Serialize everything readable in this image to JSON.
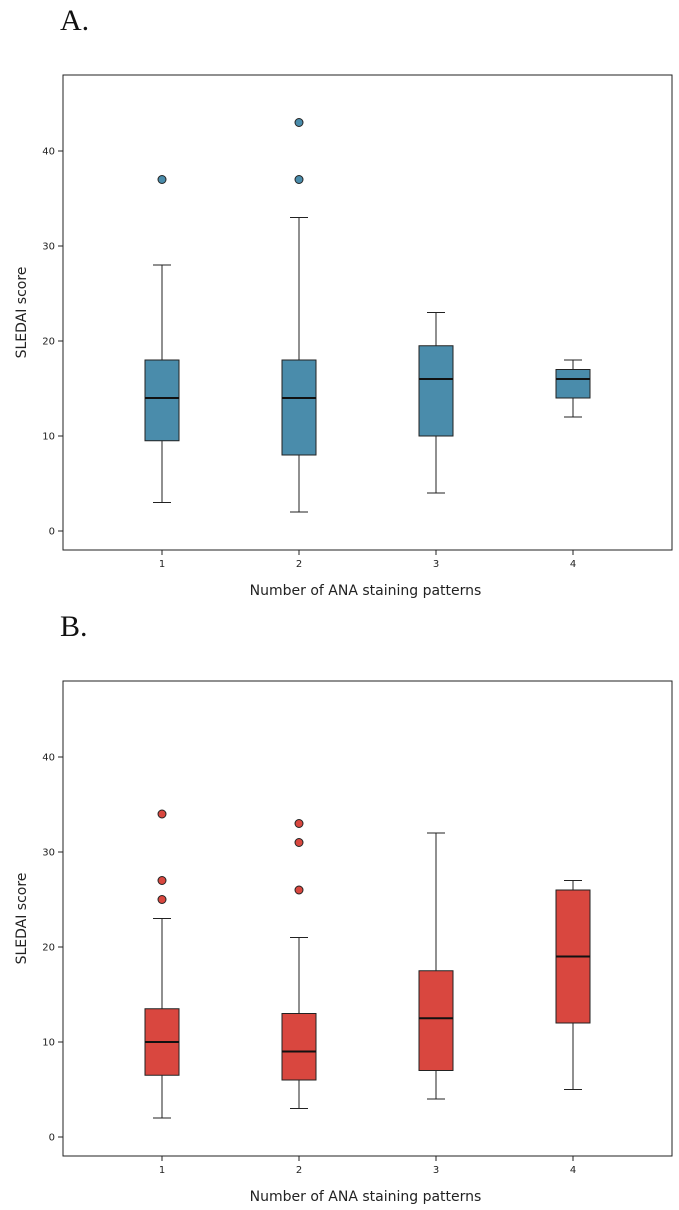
{
  "chart_data": [
    {
      "panel_label": "A.",
      "type": "box",
      "xlabel": "Number of ANA staining patterns",
      "ylabel": "SLEDAI score",
      "ylim": [
        -2,
        48
      ],
      "yticks": [
        0,
        10,
        20,
        30,
        40
      ],
      "fill_color": "#4a8cab",
      "grid": false,
      "categories": [
        "1",
        "2",
        "3",
        "4"
      ],
      "boxes": [
        {
          "category": "1",
          "whisker_low": 3,
          "q1": 9.5,
          "median": 14,
          "q3": 18,
          "whisker_high": 28,
          "outliers": [
            37
          ]
        },
        {
          "category": "2",
          "whisker_low": 2,
          "q1": 8,
          "median": 14,
          "q3": 18,
          "whisker_high": 33,
          "outliers": [
            37,
            43
          ]
        },
        {
          "category": "3",
          "whisker_low": 4,
          "q1": 10,
          "median": 16,
          "q3": 19.5,
          "whisker_high": 23,
          "outliers": []
        },
        {
          "category": "4",
          "whisker_low": 12,
          "q1": 14,
          "median": 16,
          "q3": 17,
          "whisker_high": 18,
          "outliers": []
        }
      ]
    },
    {
      "panel_label": "B.",
      "type": "box",
      "xlabel": "Number of ANA staining patterns",
      "ylabel": "SLEDAI score",
      "ylim": [
        -2,
        48
      ],
      "yticks": [
        0,
        10,
        20,
        30,
        40
      ],
      "fill_color": "#d9473f",
      "grid": false,
      "categories": [
        "1",
        "2",
        "3",
        "4"
      ],
      "boxes": [
        {
          "category": "1",
          "whisker_low": 2,
          "q1": 6.5,
          "median": 10,
          "q3": 13.5,
          "whisker_high": 23,
          "outliers": [
            25,
            27,
            34
          ]
        },
        {
          "category": "2",
          "whisker_low": 3,
          "q1": 6,
          "median": 9,
          "q3": 13,
          "whisker_high": 21,
          "outliers": [
            26,
            31,
            33
          ]
        },
        {
          "category": "3",
          "whisker_low": 4,
          "q1": 7,
          "median": 12.5,
          "q3": 17.5,
          "whisker_high": 32,
          "outliers": []
        },
        {
          "category": "4",
          "whisker_low": 5,
          "q1": 12,
          "median": 19,
          "q3": 26,
          "whisker_high": 27,
          "outliers": []
        }
      ]
    }
  ]
}
